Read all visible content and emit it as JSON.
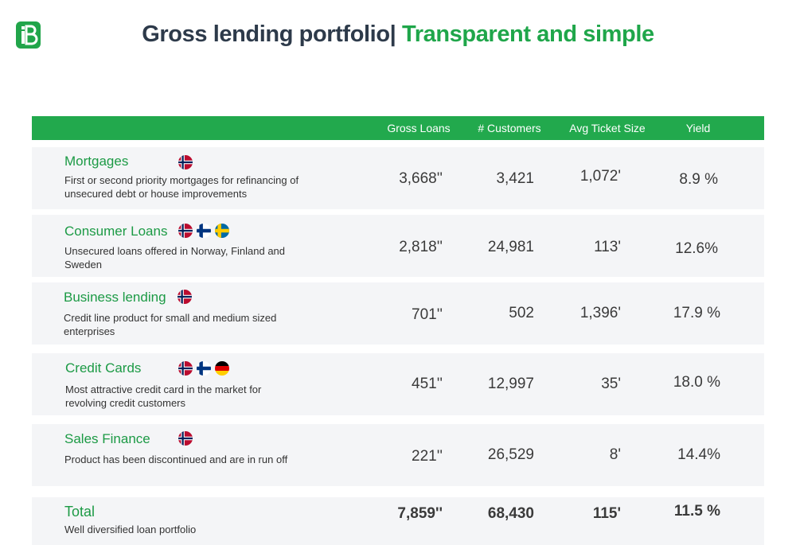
{
  "header": {
    "title_part1": "Gross lending portfolio|",
    "title_part2": " Transparent and simple",
    "logo": "brand-logo-icon"
  },
  "columns": [
    "Gross Loans",
    "# Customers",
    "Avg Ticket Size",
    "Yield"
  ],
  "rows": [
    {
      "name": "Mortgages",
      "flags": [
        "norway"
      ],
      "desc": [
        "First or second priority mortgages for refinancing of",
        "unsecured debt or house improvements"
      ],
      "gross_loans": "3,668''",
      "customers": "3,421",
      "avg_ticket": "1,072'",
      "yield": "8.9 %"
    },
    {
      "name": "Consumer Loans",
      "flags": [
        "norway",
        "finland",
        "sweden"
      ],
      "desc": [
        "Unsecured loans offered in Norway, Finland and",
        "Sweden"
      ],
      "gross_loans": "2,818''",
      "customers": "24,981",
      "avg_ticket": "113'",
      "yield": "12.6%"
    },
    {
      "name": "Business lending",
      "flags": [
        "norway"
      ],
      "desc": [
        "Credit line product for small and medium sized",
        "enterprises"
      ],
      "gross_loans": "701''",
      "customers": "502",
      "avg_ticket": "1,396'",
      "yield": "17.9 %"
    },
    {
      "name": "Credit Cards",
      "flags": [
        "norway",
        "finland",
        "germany"
      ],
      "desc": [
        "Most attractive credit card in the market for",
        "revolving credit customers"
      ],
      "gross_loans": "451''",
      "customers": "12,997",
      "avg_ticket": "35'",
      "yield": "18.0 %"
    },
    {
      "name": "Sales Finance",
      "flags": [
        "norway"
      ],
      "desc": [
        "Product has been discontinued and are in run off"
      ],
      "gross_loans": "221''",
      "customers": "26,529",
      "avg_ticket": "8'",
      "yield": "14.4%"
    }
  ],
  "total": {
    "name": "Total",
    "desc": "Well diversified loan portfolio",
    "gross_loans": "7,859''",
    "customers": "68,430",
    "avg_ticket": "115'",
    "yield": "11.5 %"
  },
  "colors": {
    "green": "#22a94d",
    "title_dark": "#2d3a4a",
    "row_bg": "#f4f5f7"
  }
}
